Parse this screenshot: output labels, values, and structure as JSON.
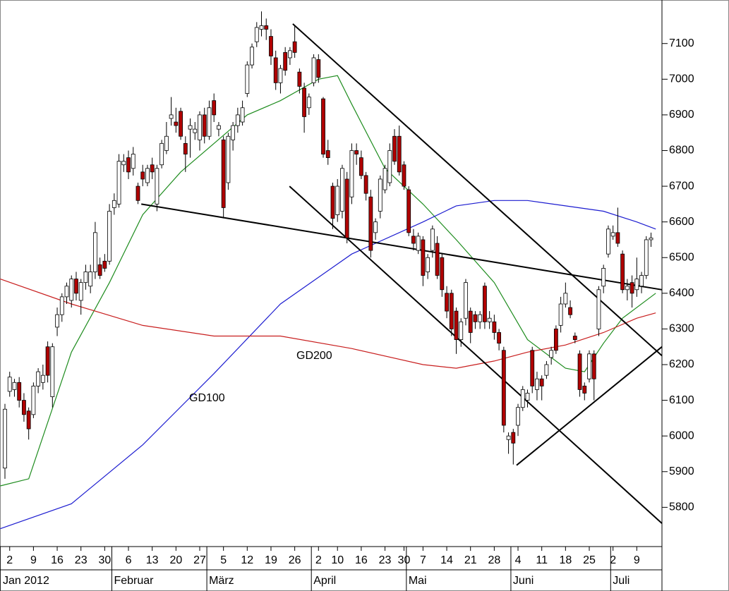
{
  "chart_data": {
    "type": "candlestick",
    "x": [
      0,
      1,
      2,
      3,
      4,
      5,
      6,
      7,
      8,
      9,
      10,
      11,
      12,
      13,
      14,
      15,
      16,
      17,
      18,
      19,
      20,
      21,
      22,
      23,
      24,
      25,
      26,
      27,
      28,
      29,
      30,
      31,
      32,
      33,
      34,
      35,
      36,
      37,
      38,
      39,
      40,
      41,
      42,
      43,
      44,
      45,
      46,
      47,
      48,
      49,
      50,
      51,
      52,
      53,
      54,
      55,
      56,
      57,
      58,
      59,
      60,
      61,
      62,
      63,
      64,
      65,
      66,
      67,
      68,
      69,
      70,
      71,
      72,
      73,
      74,
      75,
      76,
      77,
      78,
      79,
      80,
      81,
      82,
      83,
      84,
      85,
      86,
      87,
      88,
      89,
      90,
      91,
      92,
      93,
      94,
      95,
      96,
      97,
      98,
      99,
      100,
      101,
      102,
      103,
      104,
      105,
      106,
      107,
      108,
      109,
      110,
      111,
      112,
      113,
      114,
      115,
      116,
      117,
      118,
      119,
      120,
      121,
      122,
      123,
      124,
      125,
      126,
      127,
      128,
      129,
      130,
      131,
      132,
      133,
      134,
      135,
      136
    ],
    "open": [
      5910,
      6125,
      6130,
      6150,
      6100,
      6070,
      6060,
      6140,
      6150,
      6250,
      6110,
      6305,
      6340,
      6390,
      6380,
      6440,
      6380,
      6430,
      6420,
      6460,
      6480,
      6490,
      6490,
      6640,
      6650,
      6760,
      6780,
      6750,
      6700,
      6740,
      6710,
      6760,
      6650,
      6760,
      6800,
      6890,
      6880,
      6910,
      6820,
      6860,
      6850,
      6830,
      6900,
      6840,
      6940,
      6860,
      6830,
      6710,
      6830,
      6870,
      6880,
      6960,
      7040,
      7105,
      7140,
      7150,
      7120,
      7060,
      6990,
      7075,
      7060,
      7105,
      7020,
      6975,
      6920,
      6990,
      7055,
      6945,
      6800,
      6700,
      6620,
      6630,
      6720,
      6670,
      6800,
      6780,
      6730,
      6670,
      6570,
      6630,
      6690,
      6710,
      6840,
      6840,
      6760,
      6690,
      6560,
      6520,
      6550,
      6460,
      6520,
      6540,
      6500,
      6400,
      6400,
      6350,
      6270,
      6330,
      6350,
      6340,
      6320,
      6420,
      6320,
      6320,
      6290,
      6240,
      5990,
      6010,
      6030,
      6080,
      6100,
      6240,
      6130,
      6160,
      6170,
      6220,
      6300,
      6310,
      6370,
      6360,
      6280,
      6230,
      6140,
      6160,
      6230,
      6300,
      6420,
      6510,
      6560,
      6570,
      6510,
      6410,
      6430,
      6410,
      6420,
      6450,
      6550
    ],
    "high": [
      6090,
      6180,
      6160,
      6165,
      6120,
      6080,
      6150,
      6190,
      6200,
      6265,
      6260,
      6360,
      6400,
      6430,
      6450,
      6460,
      6440,
      6480,
      6480,
      6600,
      6500,
      6510,
      6650,
      6680,
      6790,
      6790,
      6800,
      6810,
      6710,
      6760,
      6760,
      6780,
      6760,
      6830,
      6880,
      6950,
      6920,
      6920,
      6840,
      6890,
      6880,
      6910,
      6920,
      6940,
      6960,
      6880,
      6840,
      6850,
      6880,
      6920,
      6940,
      7050,
      7100,
      7160,
      7190,
      7170,
      7140,
      7080,
      7040,
      7090,
      7090,
      7150,
      7030,
      6990,
      6960,
      7070,
      7070,
      6950,
      6830,
      6710,
      6720,
      6760,
      6740,
      6820,
      6820,
      6800,
      6740,
      6690,
      6610,
      6730,
      6760,
      6820,
      6860,
      6870,
      6770,
      6700,
      6580,
      6570,
      6560,
      6510,
      6590,
      6560,
      6510,
      6420,
      6410,
      6360,
      6330,
      6440,
      6360,
      6350,
      6350,
      6430,
      6350,
      6340,
      6300,
      6250,
      6010,
      6020,
      6090,
      6140,
      6130,
      6250,
      6180,
      6170,
      6210,
      6250,
      6310,
      6390,
      6430,
      6380,
      6290,
      6240,
      6150,
      6240,
      6240,
      6420,
      6480,
      6590,
      6590,
      6640,
      6520,
      6440,
      6450,
      6500,
      6460,
      6560,
      6570
    ],
    "low": [
      5880,
      6110,
      6110,
      6080,
      6040,
      5990,
      6050,
      6120,
      6130,
      6150,
      6080,
      6280,
      6320,
      6370,
      6360,
      6380,
      6340,
      6410,
      6400,
      6440,
      6440,
      6460,
      6480,
      6620,
      6640,
      6740,
      6720,
      6730,
      6650,
      6700,
      6700,
      6720,
      6630,
      6750,
      6790,
      6870,
      6850,
      6830,
      6740,
      6780,
      6830,
      6800,
      6820,
      6830,
      6880,
      6840,
      6610,
      6690,
      6800,
      6850,
      6870,
      6950,
      7030,
      7090,
      7120,
      7110,
      7040,
      6970,
      6960,
      7010,
      7040,
      7060,
      6960,
      6850,
      6900,
      6980,
      6990,
      6780,
      6760,
      6580,
      6600,
      6610,
      6540,
      6650,
      6760,
      6720,
      6660,
      6500,
      6550,
      6610,
      6680,
      6700,
      6760,
      6730,
      6690,
      6560,
      6520,
      6510,
      6420,
      6440,
      6500,
      6440,
      6390,
      6330,
      6280,
      6230,
      6250,
      6310,
      6260,
      6300,
      6300,
      6300,
      6300,
      6270,
      6240,
      6010,
      5950,
      5920,
      6000,
      6070,
      6080,
      6120,
      6100,
      6100,
      6160,
      6200,
      6230,
      6290,
      6360,
      6330,
      6260,
      6110,
      6100,
      6150,
      6100,
      6280,
      6400,
      6500,
      6550,
      6530,
      6400,
      6380,
      6360,
      6390,
      6400,
      6440,
      6530
    ],
    "close": [
      6075,
      6165,
      6150,
      6100,
      6060,
      6020,
      6140,
      6180,
      6170,
      6170,
      6250,
      6340,
      6390,
      6420,
      6440,
      6400,
      6430,
      6460,
      6460,
      6570,
      6450,
      6470,
      6630,
      6660,
      6770,
      6770,
      6740,
      6790,
      6660,
      6720,
      6750,
      6740,
      6750,
      6820,
      6840,
      6900,
      6870,
      6840,
      6790,
      6870,
      6860,
      6900,
      6840,
      6920,
      6900,
      6870,
      6640,
      6840,
      6870,
      6900,
      6920,
      7040,
      7090,
      7145,
      7150,
      7140,
      7065,
      6990,
      7030,
      7025,
      7080,
      7075,
      6980,
      6895,
      6950,
      7060,
      7005,
      6790,
      6780,
      6610,
      6700,
      6750,
      6555,
      6800,
      6790,
      6730,
      6680,
      6520,
      6600,
      6720,
      6750,
      6800,
      6770,
      6740,
      6700,
      6570,
      6540,
      6560,
      6450,
      6500,
      6580,
      6450,
      6410,
      6350,
      6300,
      6270,
      6320,
      6430,
      6290,
      6320,
      6340,
      6320,
      6330,
      6290,
      6260,
      6030,
      6000,
      5980,
      6080,
      6130,
      6120,
      6140,
      6160,
      6140,
      6200,
      6240,
      6240,
      6370,
      6400,
      6340,
      6270,
      6130,
      6120,
      6230,
      6160,
      6410,
      6470,
      6580,
      6570,
      6540,
      6410,
      6420,
      6400,
      6440,
      6450,
      6550,
      6555
    ],
    "up_color": "#ffffff",
    "down_color": "#b00000",
    "lines": [
      {
        "color": "#1e8c1e",
        "x": [
          -1,
          5,
          14,
          22,
          29,
          37,
          44,
          51,
          58,
          66,
          70,
          73,
          80,
          88,
          95,
          103,
          110,
          118,
          122,
          126,
          130,
          137
        ],
        "values": [
          5860,
          5880,
          6235,
          6430,
          6620,
          6740,
          6820,
          6900,
          6940,
          7000,
          7010,
          6930,
          6750,
          6650,
          6550,
          6430,
          6270,
          6190,
          6180,
          6260,
          6330,
          6400
        ]
      },
      {
        "name": "GD100",
        "color": "#1c1cd0",
        "x": [
          -1,
          14,
          29,
          44,
          58,
          73,
          88,
          95,
          103,
          110,
          118,
          126,
          133,
          137
        ],
        "values": [
          5740,
          5810,
          5975,
          6175,
          6370,
          6510,
          6600,
          6645,
          6660,
          6660,
          6645,
          6630,
          6600,
          6580
        ]
      },
      {
        "name": "GD200",
        "color": "#c81e1e",
        "x": [
          -1,
          14,
          29,
          44,
          58,
          73,
          88,
          95,
          103,
          110,
          118,
          126,
          133,
          137
        ],
        "values": [
          6440,
          6370,
          6310,
          6280,
          6280,
          6245,
          6200,
          6190,
          6210,
          6235,
          6255,
          6290,
          6330,
          6345
        ]
      }
    ],
    "trendlines": [
      {
        "x": [
          28.7,
          138.3
        ],
        "values": [
          6650,
          6410
        ]
      },
      {
        "x": [
          60.6,
          138.3
        ],
        "values": [
          7155,
          6225
        ]
      },
      {
        "x": [
          59.9,
          138.3
        ],
        "values": [
          6700,
          5755
        ]
      },
      {
        "x": [
          107.7,
          138.3
        ],
        "values": [
          5918,
          6250
        ]
      }
    ],
    "xlim": [
      -1.04,
      138.3
    ],
    "ylim": [
      5690,
      7222
    ],
    "yticks": [
      5800,
      5900,
      6000,
      6100,
      6200,
      6300,
      6400,
      6500,
      6600,
      6700,
      6800,
      6900,
      7000,
      7100
    ],
    "xticks": [
      {
        "value": 1,
        "label": "2"
      },
      {
        "value": 6,
        "label": "9"
      },
      {
        "value": 11,
        "label": "16"
      },
      {
        "value": 16,
        "label": "23"
      },
      {
        "value": 21,
        "label": "30"
      },
      {
        "value": 26,
        "label": "6"
      },
      {
        "value": 31,
        "label": "13"
      },
      {
        "value": 36,
        "label": "20"
      },
      {
        "value": 41,
        "label": "27"
      },
      {
        "value": 46,
        "label": "5"
      },
      {
        "value": 51,
        "label": "12"
      },
      {
        "value": 56,
        "label": "19"
      },
      {
        "value": 61,
        "label": "26"
      },
      {
        "value": 66,
        "label": "2"
      },
      {
        "value": 70,
        "label": "10"
      },
      {
        "value": 75,
        "label": "16"
      },
      {
        "value": 80,
        "label": "23"
      },
      {
        "value": 84,
        "label": "30"
      },
      {
        "value": 88,
        "label": "7"
      },
      {
        "value": 93,
        "label": "14"
      },
      {
        "value": 98,
        "label": "21"
      },
      {
        "value": 103,
        "label": "28"
      },
      {
        "value": 108,
        "label": "4"
      },
      {
        "value": 113,
        "label": "11"
      },
      {
        "value": 118,
        "label": "18"
      },
      {
        "value": 123,
        "label": "25"
      },
      {
        "value": 128,
        "label": "2"
      },
      {
        "value": 133,
        "label": "9"
      }
    ],
    "month_ticks": [
      {
        "value": -1,
        "label": "Jan 2012"
      },
      {
        "value": 22.5,
        "label": "Februar"
      },
      {
        "value": 42.5,
        "label": "März"
      },
      {
        "value": 64.5,
        "label": "April"
      },
      {
        "value": 84.5,
        "label": "Mai"
      },
      {
        "value": 106.5,
        "label": "Juni"
      },
      {
        "value": 127.5,
        "label": "Juli"
      }
    ]
  }
}
